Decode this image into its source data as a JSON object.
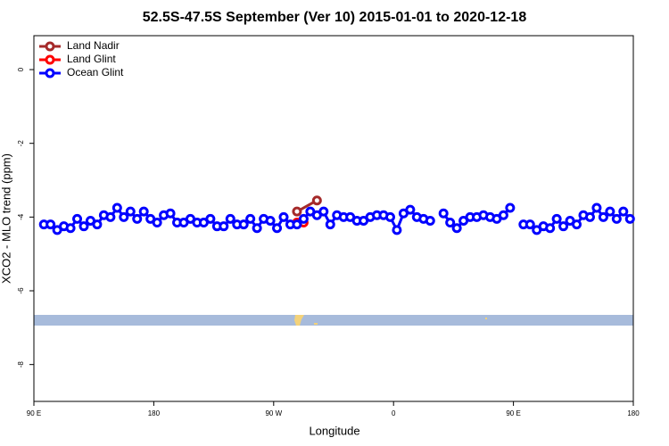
{
  "chart_data": {
    "type": "line",
    "title": "52.5S-47.5S September (Ver 10)   2015-01-01 to 2020-12-18",
    "x_label": "Longitude",
    "y_label": "XCO2 - MLO trend (ppm)",
    "xlim": [
      90,
      540
    ],
    "xticks": [
      {
        "value": 90,
        "label": "90 E"
      },
      180,
      {
        "value": 270,
        "label": "90 W"
      },
      {
        "value": 360,
        "label": "0"
      },
      {
        "value": 450,
        "label": "90 E"
      },
      {
        "value": 540,
        "label": "180"
      }
    ],
    "ylim": [
      -9,
      0.92
    ],
    "yticks": [
      0,
      -2,
      -4,
      -6,
      -8
    ],
    "legend": "top-left",
    "series": [
      {
        "name": "Land Nadir",
        "color": "#a52a2a",
        "x": [
          287.5,
          302.5
        ],
        "values": [
          -3.85,
          -3.55
        ]
      },
      {
        "name": "Land Glint",
        "color": "#ff0000",
        "x": [
          287.5,
          292.5
        ],
        "values": [
          -4.15,
          -4.15
        ]
      },
      {
        "name": "Ocean Glint",
        "color": "#0000ff",
        "x": [
          97.5,
          102.5,
          107.5,
          112.5,
          117.5,
          122.5,
          127.5,
          132.5,
          137.5,
          142.5,
          147.5,
          152.5,
          157.5,
          162.5,
          167.5,
          172.5,
          177.5,
          182.5,
          187.5,
          192.5,
          197.5,
          202.5,
          207.5,
          212.5,
          217.5,
          222.5,
          227.5,
          232.5,
          237.5,
          242.5,
          247.5,
          252.5,
          257.5,
          262.5,
          267.5,
          272.5,
          277.5,
          282.5,
          287.5,
          292.5,
          297.5,
          302.5,
          307.5,
          312.5,
          317.5,
          322.5,
          327.5,
          332.5,
          337.5,
          342.5,
          347.5,
          352.5,
          357.5,
          362.5,
          367.5,
          372.5,
          377.5,
          382.5,
          387.5,
          392.5,
          397.5,
          402.5,
          407.5,
          412.5,
          417.5,
          422.5,
          427.5,
          432.5,
          437.5,
          442.5,
          447.5,
          452.5,
          457.5,
          462.5,
          467.5,
          472.5,
          477.5,
          482.5,
          487.5,
          492.5,
          497.5,
          502.5,
          507.5,
          512.5,
          517.5,
          522.5,
          527.5,
          532.5,
          537.5
        ],
        "values": [
          -4.2,
          -4.2,
          -4.35,
          -4.25,
          -4.3,
          -4.05,
          -4.25,
          -4.1,
          -4.2,
          -3.95,
          -4.0,
          -3.75,
          -4.0,
          -3.85,
          -4.05,
          -3.85,
          -4.05,
          -4.15,
          -3.95,
          -3.9,
          -4.15,
          -4.15,
          -4.05,
          -4.15,
          -4.15,
          -4.05,
          -4.25,
          -4.25,
          -4.05,
          -4.2,
          -4.2,
          -4.05,
          -4.3,
          -4.05,
          -4.1,
          -4.3,
          -4.0,
          -4.2,
          -4.2,
          -4.05,
          -3.85,
          -3.95,
          -3.85,
          -4.2,
          -3.95,
          -4.0,
          -4.0,
          -4.1,
          -4.1,
          -4.0,
          -3.95,
          -3.95,
          -4.0,
          -4.35,
          -3.9,
          -3.8,
          -4.0,
          -4.05,
          -4.1,
          null,
          -3.9,
          -4.15,
          -4.3,
          -4.1,
          -4.0,
          -4.0,
          -3.95,
          -4.0,
          -4.05,
          -3.95,
          -3.75,
          null,
          -4.2,
          -4.2,
          -4.35,
          -4.25,
          -4.3,
          -4.05,
          -4.25,
          -4.1,
          -4.2,
          -3.95,
          -4.0,
          -3.75,
          -4.0,
          -3.85,
          -4.05,
          -3.85,
          -4.05
        ]
      }
    ]
  }
}
